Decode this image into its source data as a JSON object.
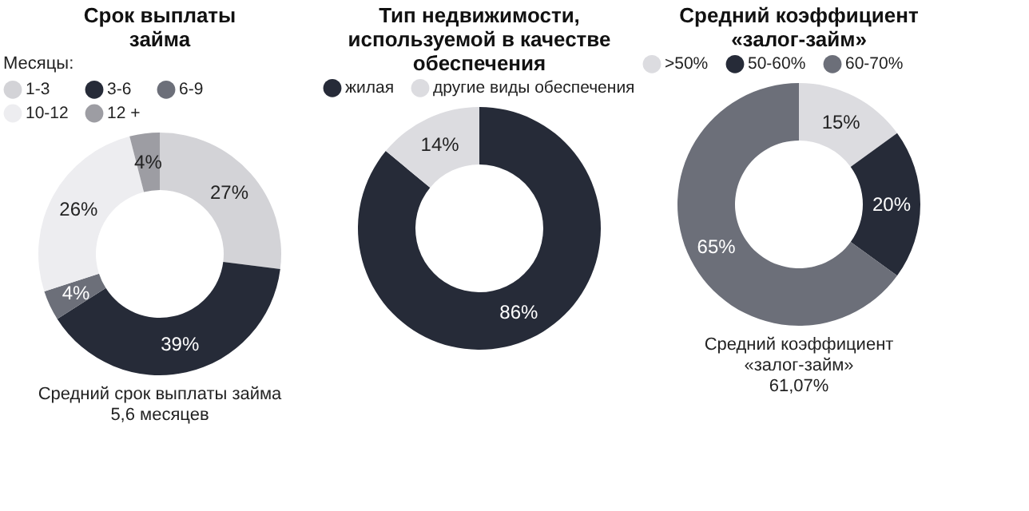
{
  "chart_data": [
    {
      "type": "donut",
      "title": "Срок выплаты\nзайма",
      "legend_title": "Месяцы:",
      "legend": "top",
      "categories": [
        "1-3",
        "3-6",
        "6-9",
        "10-12",
        "12 +"
      ],
      "values": [
        27,
        39,
        4,
        26,
        4
      ],
      "colors": [
        "#d3d3d7",
        "#262b38",
        "#6c6f79",
        "#ededf0",
        "#9d9da3"
      ],
      "value_labels": [
        "27%",
        "39%",
        "4%",
        "26%",
        "4%"
      ],
      "annotations": [
        "Средний срок выплаты займа\n5,6 месяцев"
      ]
    },
    {
      "type": "donut",
      "title": "Тип недвижимости,\nиспользуемой в качестве\nобеспечения",
      "legend": "top",
      "categories": [
        "жилая",
        "другие виды обеспечения"
      ],
      "values": [
        86,
        14
      ],
      "colors": [
        "#262b38",
        "#dcdce0"
      ],
      "value_labels": [
        "86%",
        "14%"
      ]
    },
    {
      "type": "donut",
      "title": "Средний коэффициент\n«залог-займ»",
      "legend": "top",
      "categories": [
        ">50%",
        "50-60%",
        "60-70%"
      ],
      "values": [
        15,
        20,
        65
      ],
      "colors": [
        "#dcdce0",
        "#262b38",
        "#6c6f79"
      ],
      "value_labels": [
        "15%",
        "20%",
        "65%"
      ],
      "annotations": [
        "Средний коэффициент\n«залог-займ»\n61,07%"
      ]
    }
  ]
}
